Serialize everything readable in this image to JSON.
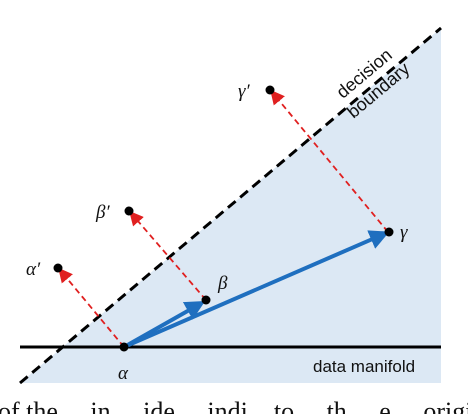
{
  "labels": {
    "decision_line1": "decision",
    "decision_line2": "boundary",
    "data_manifold": "data manifold",
    "alpha": "α",
    "beta": "β",
    "gamma": "γ",
    "alpha_prime": "α′",
    "beta_prime": "β′",
    "gamma_prime": "γ′"
  },
  "caption_fragment": "of the… in…   ide… indi…to… th… e… original",
  "colors": {
    "region_fill": "#dce8f4",
    "arrow_blue": "#1f6fbf",
    "reflection_red": "#e02020",
    "boundary_black": "#000000"
  }
}
